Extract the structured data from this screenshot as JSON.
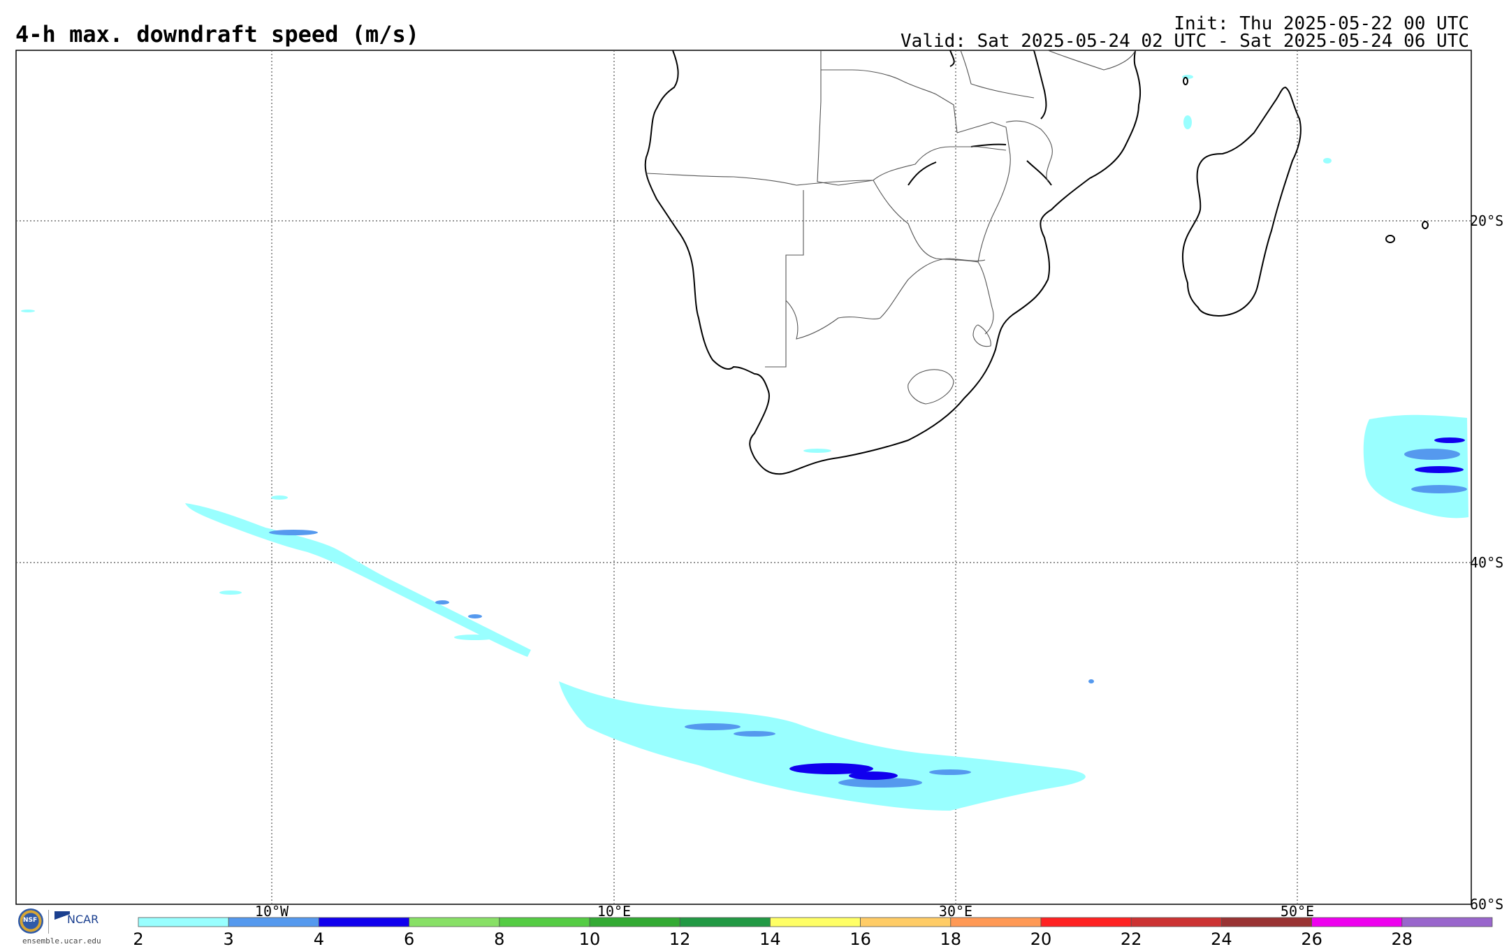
{
  "title": "4-h max. downdraft speed (m/s)",
  "init": "Init: Thu 2025-05-22 00 UTC",
  "valid": "Valid: Sat 2025-05-24 02 UTC - Sat 2025-05-24 06 UTC",
  "lon_labels": [
    "10°W",
    "10°E",
    "30°E",
    "50°E"
  ],
  "lat_labels": [
    "20°S",
    "40°S",
    "60°S"
  ],
  "colorbar": {
    "colors": [
      "#99ffff",
      "#5599ee",
      "#1100ee",
      "#88e066",
      "#55cc44",
      "#33aa33",
      "#229944",
      "#ffff66",
      "#ffcc66",
      "#ff9955",
      "#ff2222",
      "#cc3333",
      "#993333",
      "#ee00ee",
      "#9966cc"
    ],
    "ticks": [
      "2",
      "3",
      "4",
      "6",
      "8",
      "10",
      "12",
      "14",
      "16",
      "18",
      "20",
      "22",
      "24",
      "26",
      "28"
    ]
  },
  "logo": {
    "nsf": "NSF",
    "ncar": "NCAR",
    "url": "ensemble.ucar.edu"
  }
}
